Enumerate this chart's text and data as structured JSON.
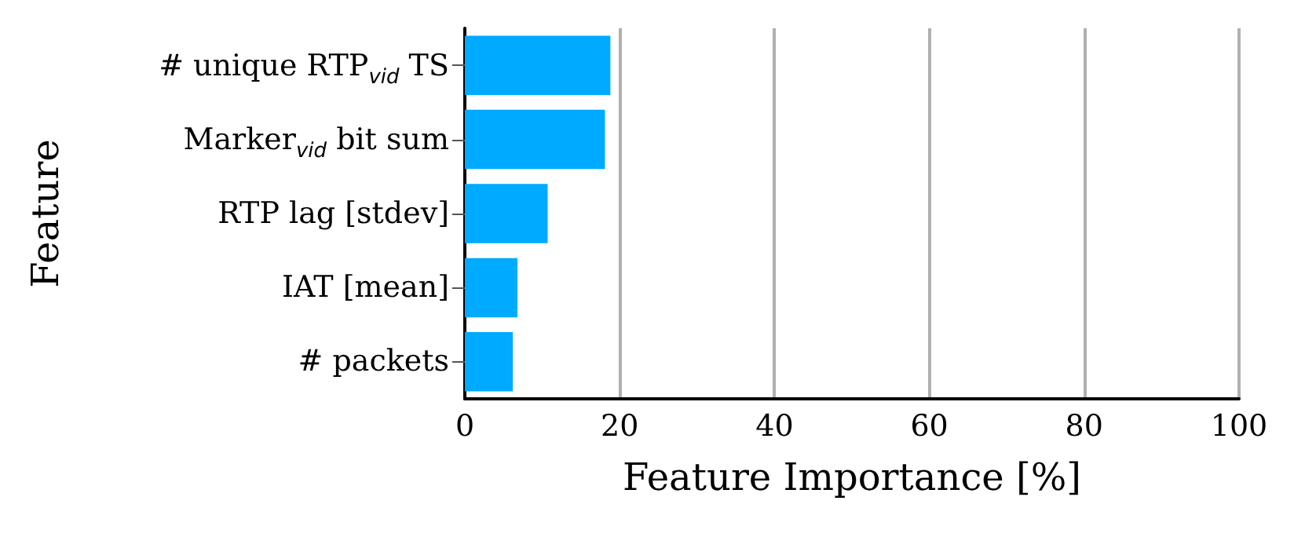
{
  "chart_data": {
    "type": "bar",
    "orientation": "horizontal",
    "xlabel": "Feature Importance [%]",
    "ylabel": "Feature",
    "categories": [
      "# unique RTP$_{vid}$ TS",
      "Marker$_{vid}$ bit sum",
      "RTP lag [stdev]",
      "IAT [mean]",
      "# packets"
    ],
    "values": [
      18.8,
      18.1,
      10.7,
      6.8,
      6.2
    ],
    "color": "#00aaff",
    "xlim": [
      0,
      100
    ],
    "xticks": [
      0,
      20,
      40,
      60,
      80,
      100
    ],
    "grid": "x"
  }
}
